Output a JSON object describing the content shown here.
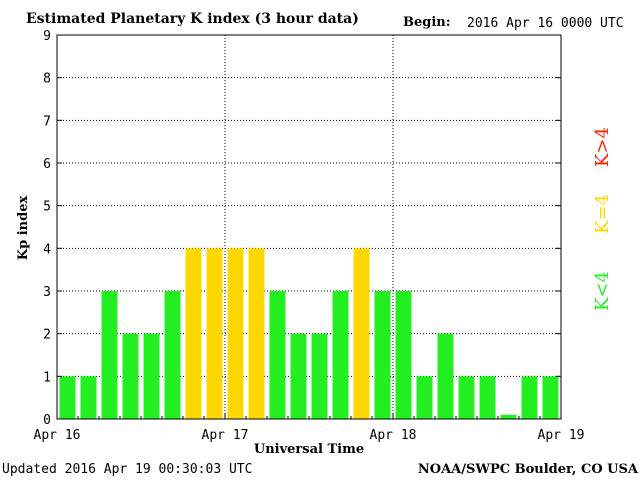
{
  "header": {
    "title": "Estimated Planetary K index (3 hour data)",
    "begin_label": "Begin:",
    "begin_value": "2016 Apr 16 0000 UTC"
  },
  "footer": {
    "updated": "Updated 2016 Apr 19 00:30:03 UTC",
    "source": "NOAA/SWPC Boulder, CO USA"
  },
  "legend": {
    "high": "K>4",
    "equal": "K=4",
    "low": "K<4"
  },
  "colors": {
    "low": "#22ee22",
    "equal": "#ffd700",
    "high": "#ff2200"
  },
  "chart_data": {
    "type": "bar",
    "xlabel": "Universal Time",
    "ylabel": "Kp index",
    "ylim": [
      0,
      9
    ],
    "yticks": [
      "0",
      "1",
      "2",
      "3",
      "4",
      "5",
      "6",
      "7",
      "8",
      "9"
    ],
    "xticks": [
      "Apr 16",
      "Apr 17",
      "Apr 18",
      "Apr 19"
    ],
    "grid": true,
    "legend_position": "right",
    "values": [
      1,
      1,
      3,
      2,
      2,
      3,
      4,
      4,
      4,
      4,
      3,
      2,
      2,
      3,
      4,
      3,
      3,
      1,
      2,
      1,
      1,
      0.1,
      1,
      1
    ]
  }
}
